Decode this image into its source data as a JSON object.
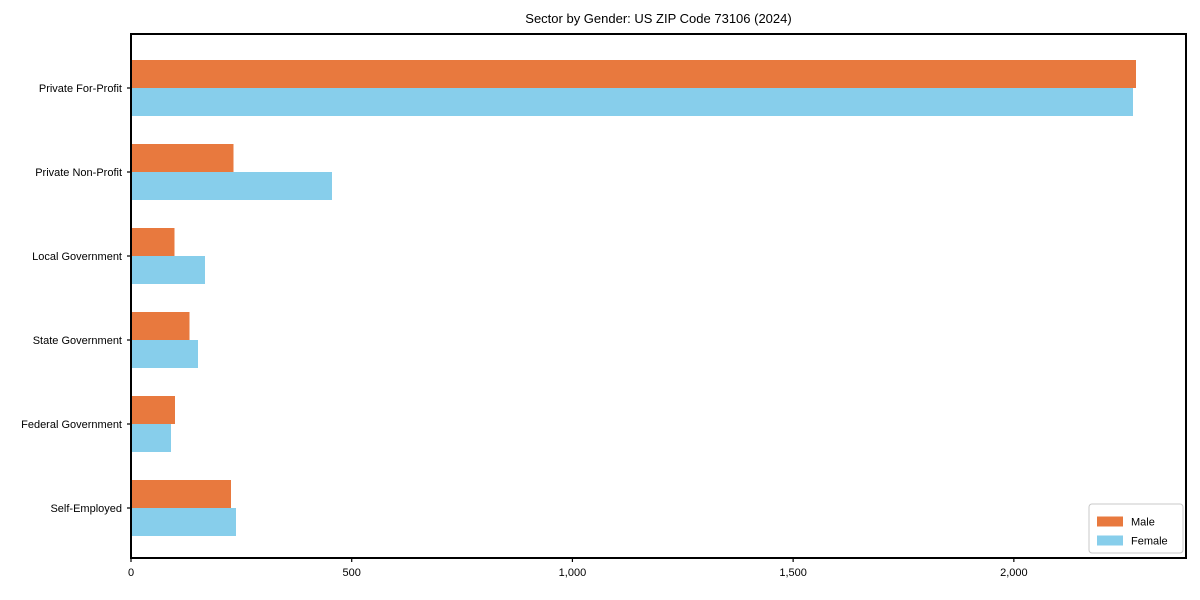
{
  "chart_data": {
    "type": "bar",
    "orientation": "horizontal",
    "title": "Sector by Gender: US ZIP Code 73106 (2024)",
    "categories": [
      "Private For-Profit",
      "Private Non-Profit",
      "Local Government",
      "State Government",
      "Federal Government",
      "Self-Employed"
    ],
    "series": [
      {
        "name": "Male",
        "color": "#e8793e",
        "values": [
          2277,
          232,
          98,
          132,
          100,
          227
        ]
      },
      {
        "name": "Female",
        "color": "#87ceeb",
        "values": [
          2270,
          455,
          168,
          152,
          91,
          238
        ]
      }
    ],
    "xlabel": "",
    "ylabel": "",
    "xlim": [
      0,
      2390
    ],
    "x_ticks": [
      0,
      500,
      1000,
      1500,
      2000
    ],
    "x_tick_labels": [
      "0",
      "500",
      "1,000",
      "1,500",
      "2,000"
    ],
    "grid": false,
    "legend": {
      "position": "lower-right",
      "entries": [
        "Male",
        "Female"
      ]
    }
  },
  "colors": {
    "male": "#e8793e",
    "female": "#87ceeb",
    "spine": "#000000",
    "background": "#ffffff",
    "legend_border": "#c8c8c8",
    "legend_background": "#ffffff"
  }
}
